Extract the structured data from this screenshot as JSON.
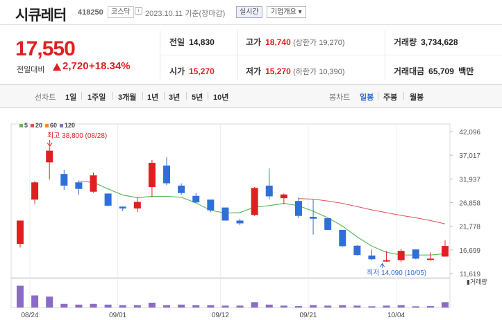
{
  "header": {
    "name": "시큐레터",
    "code": "418250",
    "market": "코스닥",
    "date": "2023.10.11",
    "basis": "기준(장마감)",
    "realtime_label": "실시간",
    "overview_label": "기업개요 ▾"
  },
  "summary": {
    "price": "17,550",
    "change_label": "전일대비",
    "change_value": "2,720",
    "change_pct": "+18.34%",
    "stats": {
      "prev_label": "전일",
      "prev_value": "14,830",
      "high_label": "고가",
      "high_value": "18,740",
      "high_sub": "(상한가 19,270)",
      "volume_label": "거래량",
      "volume_value": "3,734,628",
      "open_label": "시가",
      "open_value": "15,270",
      "low_label": "저가",
      "low_value": "15,270",
      "low_sub": "(하한가 10,390)",
      "amount_label": "거래대금",
      "amount_value": "65,709",
      "amount_unit": "백만"
    }
  },
  "toolbar": {
    "line_label": "선차트",
    "periods": [
      "1일",
      "1주일",
      "3개월",
      "1년",
      "3년",
      "5년",
      "10년"
    ],
    "candle_label": "봉차트",
    "candle_periods": [
      "일봉",
      "주봉",
      "월봉"
    ],
    "active_candle": "일봉"
  },
  "colors": {
    "up": "#e02020",
    "down": "#2f6fdb",
    "ma5": "#5cb85c",
    "ma20": "#e05050",
    "ma60": "#f08a24",
    "ma120": "#8a6cc4"
  },
  "chart_data": {
    "type": "candlestick",
    "legend": [
      {
        "name": "5",
        "color": "#5cb85c"
      },
      {
        "name": "20",
        "color": "#e05050"
      },
      {
        "name": "60",
        "color": "#f08a24"
      },
      {
        "name": "120",
        "color": "#8a6cc4"
      }
    ],
    "y_ticks": [
      "42,096",
      "37,017",
      "31,937",
      "26,858",
      "21,778",
      "16,699",
      "11,619"
    ],
    "ylim": [
      11619,
      42096
    ],
    "x_labels": [
      "08/24",
      "09/01",
      "09/12",
      "09/21",
      "10/04"
    ],
    "x_label_index": [
      0,
      6,
      13,
      19,
      25
    ],
    "max_annotation": "최고 38,800 (08/28)",
    "min_annotation": "최저 14,090 (10/05)",
    "volume_label": "거래량",
    "candles": [
      {
        "date": "08/24",
        "o": 18000,
        "h": 23000,
        "l": 17200,
        "c": 23000
      },
      {
        "date": "08/25",
        "o": 27500,
        "h": 31500,
        "l": 26500,
        "c": 31200
      },
      {
        "date": "08/28",
        "o": 35500,
        "h": 38800,
        "l": 31800,
        "c": 38000
      },
      {
        "date": "08/29",
        "o": 33000,
        "h": 33900,
        "l": 29600,
        "c": 30500
      },
      {
        "date": "08/30",
        "o": 31200,
        "h": 31600,
        "l": 28500,
        "c": 29800
      },
      {
        "date": "08/31",
        "o": 29200,
        "h": 33300,
        "l": 29000,
        "c": 32700
      },
      {
        "date": "09/01",
        "o": 28800,
        "h": 28800,
        "l": 26000,
        "c": 26200
      },
      {
        "date": "09/04",
        "o": 26000,
        "h": 26000,
        "l": 25000,
        "c": 25600
      },
      {
        "date": "09/05",
        "o": 25600,
        "h": 28000,
        "l": 24800,
        "c": 27000
      },
      {
        "date": "09/06",
        "o": 30200,
        "h": 36000,
        "l": 28000,
        "c": 35400
      },
      {
        "date": "09/07",
        "o": 34800,
        "h": 36600,
        "l": 30600,
        "c": 31000
      },
      {
        "date": "09/08",
        "o": 30500,
        "h": 31000,
        "l": 28500,
        "c": 28900
      },
      {
        "date": "09/11",
        "o": 28300,
        "h": 28900,
        "l": 26800,
        "c": 26900
      },
      {
        "date": "09/12",
        "o": 27500,
        "h": 27500,
        "l": 24800,
        "c": 25200
      },
      {
        "date": "09/13",
        "o": 25800,
        "h": 25800,
        "l": 23000,
        "c": 23000
      },
      {
        "date": "09/14",
        "o": 23000,
        "h": 23400,
        "l": 22000,
        "c": 22400
      },
      {
        "date": "09/15",
        "o": 24200,
        "h": 30200,
        "l": 24000,
        "c": 30000
      },
      {
        "date": "09/18",
        "o": 30500,
        "h": 34200,
        "l": 27500,
        "c": 28200
      },
      {
        "date": "09/19",
        "o": 27800,
        "h": 28800,
        "l": 26500,
        "c": 28600
      },
      {
        "date": "09/20",
        "o": 27200,
        "h": 28000,
        "l": 23500,
        "c": 24000
      },
      {
        "date": "09/21",
        "o": 23800,
        "h": 27500,
        "l": 20000,
        "c": 23400
      },
      {
        "date": "09/22",
        "o": 23500,
        "h": 23500,
        "l": 21000,
        "c": 21000
      },
      {
        "date": "09/25",
        "o": 21000,
        "h": 21000,
        "l": 17400,
        "c": 17500
      },
      {
        "date": "09/26",
        "o": 17600,
        "h": 17700,
        "l": 15500,
        "c": 15600
      },
      {
        "date": "09/27",
        "o": 15500,
        "h": 16800,
        "l": 14500,
        "c": 14700
      },
      {
        "date": "10/04",
        "o": 14300,
        "h": 16500,
        "l": 14100,
        "c": 14500
      },
      {
        "date": "10/05",
        "o": 14500,
        "h": 16900,
        "l": 14090,
        "c": 16500
      },
      {
        "date": "10/06",
        "o": 16800,
        "h": 16800,
        "l": 14700,
        "c": 14830
      },
      {
        "date": "10/10",
        "o": 14830,
        "h": 16200,
        "l": 14400,
        "c": 14830
      },
      {
        "date": "10/11",
        "o": 15270,
        "h": 18740,
        "l": 15270,
        "c": 17550
      }
    ],
    "ma5": [
      {
        "i": 4,
        "v": 31500
      },
      {
        "i": 5,
        "v": 31200
      },
      {
        "i": 6,
        "v": 29800
      },
      {
        "i": 7,
        "v": 28500
      },
      {
        "i": 8,
        "v": 27900
      },
      {
        "i": 9,
        "v": 28200
      },
      {
        "i": 10,
        "v": 28200
      },
      {
        "i": 11,
        "v": 28000
      },
      {
        "i": 12,
        "v": 26800
      },
      {
        "i": 13,
        "v": 25200
      },
      {
        "i": 14,
        "v": 24600
      },
      {
        "i": 15,
        "v": 24700
      },
      {
        "i": 16,
        "v": 25900
      },
      {
        "i": 17,
        "v": 26200
      },
      {
        "i": 18,
        "v": 26700
      },
      {
        "i": 19,
        "v": 26200
      },
      {
        "i": 20,
        "v": 25000
      },
      {
        "i": 21,
        "v": 23600
      },
      {
        "i": 22,
        "v": 21800
      },
      {
        "i": 23,
        "v": 19500
      },
      {
        "i": 24,
        "v": 17500
      },
      {
        "i": 25,
        "v": 16200
      },
      {
        "i": 26,
        "v": 15600
      },
      {
        "i": 27,
        "v": 15600
      },
      {
        "i": 28,
        "v": 15600
      },
      {
        "i": 29,
        "v": 15900
      }
    ],
    "ma20": [
      {
        "i": 19,
        "v": 27700
      },
      {
        "i": 20,
        "v": 27600
      },
      {
        "i": 21,
        "v": 27200
      },
      {
        "i": 22,
        "v": 26700
      },
      {
        "i": 23,
        "v": 26000
      },
      {
        "i": 24,
        "v": 25300
      },
      {
        "i": 25,
        "v": 24700
      },
      {
        "i": 26,
        "v": 24100
      },
      {
        "i": 27,
        "v": 23600
      },
      {
        "i": 28,
        "v": 23000
      },
      {
        "i": 29,
        "v": 22300
      }
    ],
    "volume": [
      0.9,
      0.5,
      0.45,
      0.15,
      0.12,
      0.15,
      0.12,
      0.1,
      0.1,
      0.2,
      0.1,
      0.12,
      0.1,
      0.1,
      0.08,
      0.08,
      0.22,
      0.12,
      0.08,
      0.06,
      0.1,
      0.08,
      0.1,
      0.08,
      0.05,
      0.08,
      0.1,
      0.05,
      0.06,
      0.22
    ]
  }
}
